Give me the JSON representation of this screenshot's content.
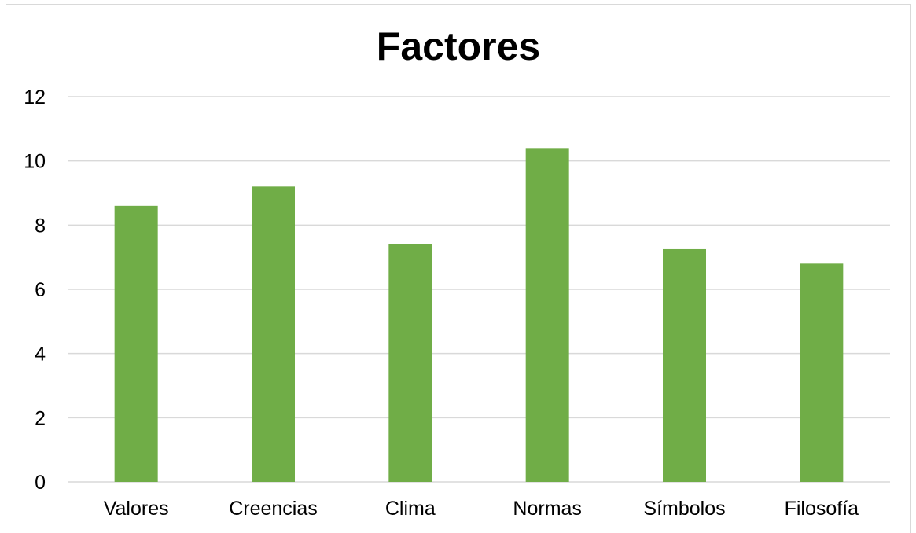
{
  "chart_data": {
    "type": "bar",
    "title": "Factores",
    "xlabel": "",
    "ylabel": "",
    "categories": [
      "Valores",
      "Creencias",
      "Clima",
      "Normas",
      "Símbolos",
      "Filosofía"
    ],
    "values": [
      8.6,
      9.2,
      7.4,
      10.4,
      7.25,
      6.8
    ],
    "ylim": [
      0,
      12
    ],
    "yticks": [
      "0",
      "2",
      "4",
      "6",
      "8",
      "10",
      "12"
    ],
    "grid": true,
    "legend": "none",
    "colors": {
      "bar": "#70ad47",
      "grid": "#d9d9d9",
      "axis": "#d9d9d9"
    }
  }
}
